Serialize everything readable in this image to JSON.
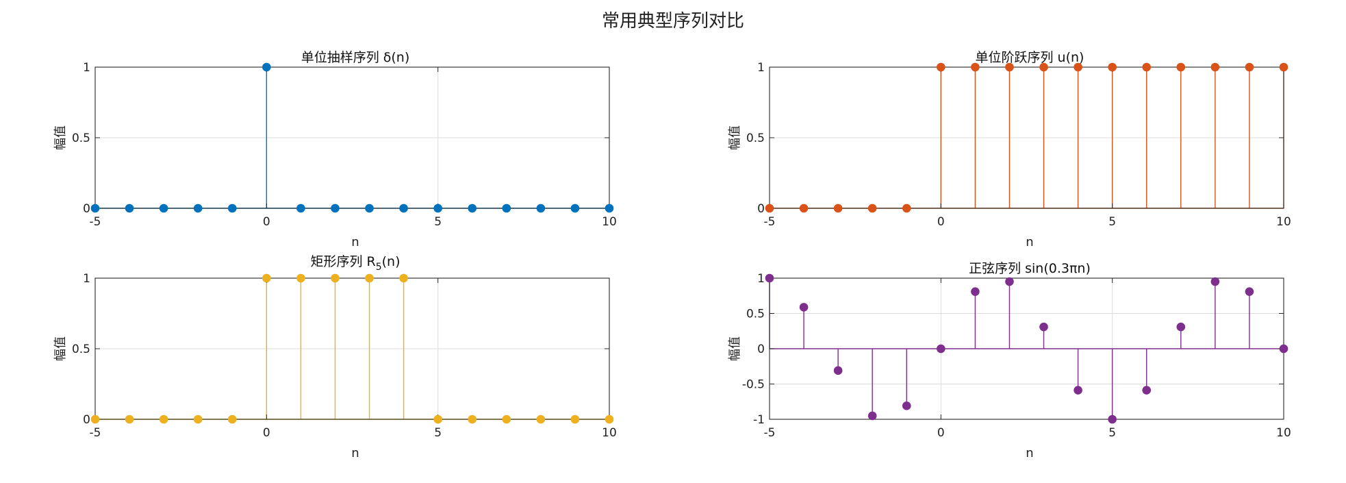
{
  "figure": {
    "title": "常用典型序列对比"
  },
  "chart_data": [
    {
      "type": "stem",
      "title": "单位抽样序列 δ(n)",
      "xlabel": "n",
      "ylabel": "幅值",
      "color": "#0072BD",
      "xlim": [
        -5,
        10
      ],
      "ylim": [
        0,
        1
      ],
      "xticks": [
        -5,
        0,
        5,
        10
      ],
      "yticks": [
        0,
        0.5,
        1
      ],
      "ytick_labels": [
        "0",
        "0.5",
        "1"
      ],
      "grid": true,
      "x": [
        -5,
        -4,
        -3,
        -2,
        -1,
        0,
        1,
        2,
        3,
        4,
        5,
        6,
        7,
        8,
        9,
        10
      ],
      "y": [
        0,
        0,
        0,
        0,
        0,
        1,
        0,
        0,
        0,
        0,
        0,
        0,
        0,
        0,
        0,
        0
      ]
    },
    {
      "type": "stem",
      "title": "单位阶跃序列 u(n)",
      "xlabel": "n",
      "ylabel": "幅值",
      "color": "#D95319",
      "xlim": [
        -5,
        10
      ],
      "ylim": [
        0,
        1
      ],
      "xticks": [
        -5,
        0,
        5,
        10
      ],
      "yticks": [
        0,
        0.5,
        1
      ],
      "ytick_labels": [
        "0",
        "0.5",
        "1"
      ],
      "grid": true,
      "x": [
        -5,
        -4,
        -3,
        -2,
        -1,
        0,
        1,
        2,
        3,
        4,
        5,
        6,
        7,
        8,
        9,
        10
      ],
      "y": [
        0,
        0,
        0,
        0,
        0,
        1,
        1,
        1,
        1,
        1,
        1,
        1,
        1,
        1,
        1,
        1
      ]
    },
    {
      "type": "stem",
      "title_main": "矩形序列 R",
      "title_sub": "5",
      "title_tail": "(n)",
      "xlabel": "n",
      "ylabel": "幅值",
      "color": "#EDB120",
      "xlim": [
        -5,
        10
      ],
      "ylim": [
        0,
        1
      ],
      "xticks": [
        -5,
        0,
        5,
        10
      ],
      "yticks": [
        0,
        0.5,
        1
      ],
      "ytick_labels": [
        "0",
        "0.5",
        "1"
      ],
      "grid": true,
      "x": [
        -5,
        -4,
        -3,
        -2,
        -1,
        0,
        1,
        2,
        3,
        4,
        5,
        6,
        7,
        8,
        9,
        10
      ],
      "y": [
        0,
        0,
        0,
        0,
        0,
        1,
        1,
        1,
        1,
        1,
        0,
        0,
        0,
        0,
        0,
        0
      ]
    },
    {
      "type": "stem",
      "title": "正弦序列 sin(0.3πn)",
      "xlabel": "n",
      "ylabel": "幅值",
      "color": "#7E2F8E",
      "xlim": [
        -5,
        10
      ],
      "ylim": [
        -1,
        1
      ],
      "xticks": [
        -5,
        0,
        5,
        10
      ],
      "yticks": [
        -1,
        -0.5,
        0,
        0.5,
        1
      ],
      "ytick_labels": [
        "-1",
        "-0.5",
        "0",
        "0.5",
        "1"
      ],
      "grid": true,
      "x": [
        -5,
        -4,
        -3,
        -2,
        -1,
        0,
        1,
        2,
        3,
        4,
        5,
        6,
        7,
        8,
        9,
        10
      ],
      "y": [
        1,
        0.588,
        -0.309,
        -0.951,
        -0.809,
        0,
        0.809,
        0.951,
        0.309,
        -0.588,
        -1,
        -0.588,
        0.309,
        0.951,
        0.809,
        0
      ]
    }
  ]
}
